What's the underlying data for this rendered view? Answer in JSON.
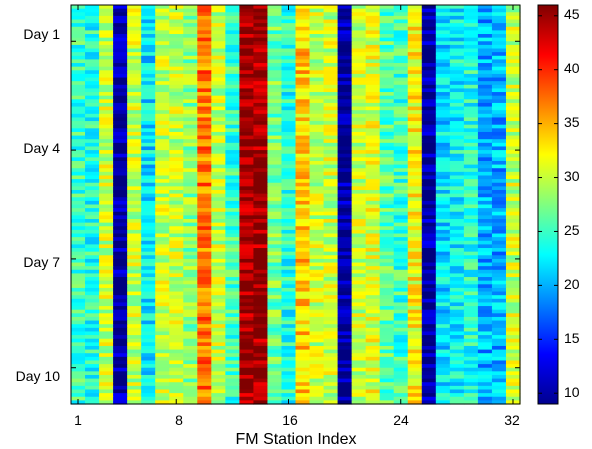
{
  "chart_data": {
    "type": "heatmap",
    "title": "",
    "xlabel": "FM Station Index",
    "ylabel": "",
    "x_range": [
      1,
      32
    ],
    "x_ticks": [
      1,
      8,
      16,
      24,
      32
    ],
    "x_tick_labels": [
      "1",
      "8",
      "16",
      "24",
      "32"
    ],
    "y_range_days": [
      0,
      11
    ],
    "y_ticks": [
      1,
      4,
      7,
      10
    ],
    "y_tick_labels": [
      "Day 1",
      "Day 4",
      "Day 7",
      "Day 10"
    ],
    "colorbar": {
      "range": [
        9,
        46
      ],
      "ticks": [
        10,
        15,
        20,
        25,
        30,
        35,
        40,
        45
      ],
      "tick_labels": [
        "10",
        "15",
        "20",
        "25",
        "30",
        "35",
        "40",
        "45"
      ],
      "colormap": "jet"
    },
    "station_mean_values": [
      25,
      24,
      30,
      10,
      30,
      22,
      30,
      30,
      28,
      37,
      30,
      25,
      45,
      45,
      27,
      24,
      34,
      30,
      30,
      10,
      30,
      31,
      26,
      25,
      32,
      10,
      22,
      23,
      24,
      20,
      20,
      30
    ],
    "grid": false,
    "legend": "none"
  }
}
